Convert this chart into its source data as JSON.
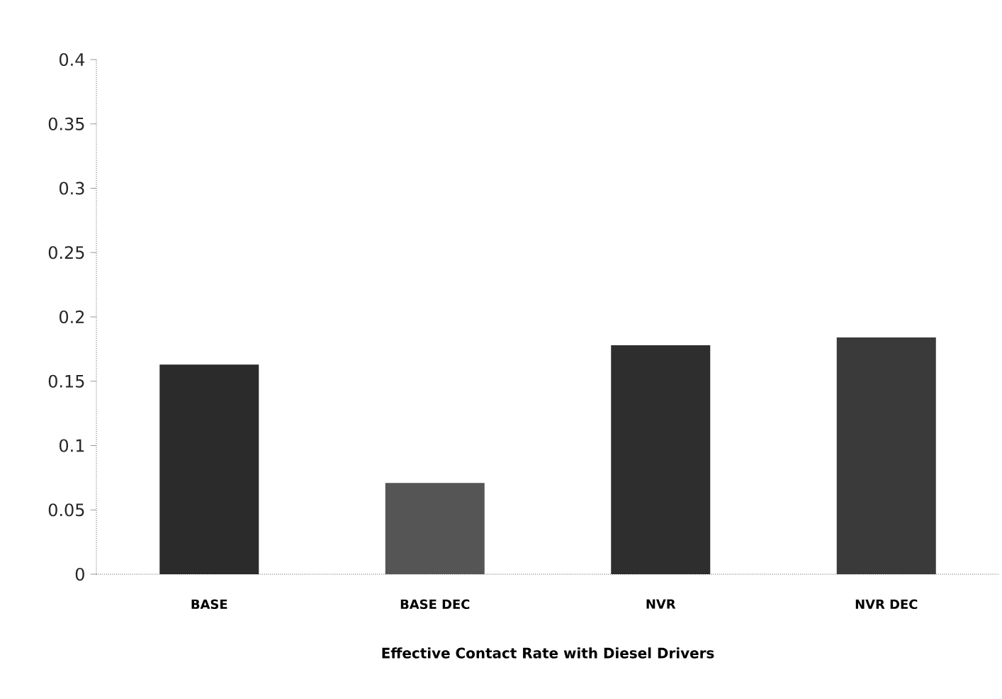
{
  "chart_data": {
    "type": "bar",
    "xlabel": "Effective Contact Rate with Diesel Drivers",
    "categories": [
      "BASE",
      "BASE DEC",
      "NVR",
      "NVR DEC"
    ],
    "values": [
      0.163,
      0.071,
      0.178,
      0.184
    ],
    "colors": [
      "#2b2b2b",
      "#555555",
      "#2e2e2e",
      "#3a3a3a"
    ],
    "ylim": [
      0,
      0.4
    ],
    "yticks": [
      0,
      0.05,
      0.1,
      0.15,
      0.2,
      0.25,
      0.3,
      0.35,
      0.4
    ],
    "grid": false
  }
}
